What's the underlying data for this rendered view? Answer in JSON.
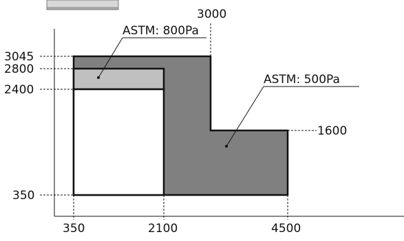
{
  "diagram": {
    "x_ticks": [
      "350",
      "2100",
      "4500"
    ],
    "y_ticks": [
      "3045",
      "2800",
      "2400",
      "350"
    ],
    "top_value": "3000",
    "right_value": "1600",
    "annotation_800": "ASTM: 800Pa",
    "annotation_500": "ASTM: 500Pa",
    "colors": {
      "dark_fill": "#808080",
      "light_fill": "#c0c0c0",
      "inner_fill": "#ffffff",
      "stroke": "#111111"
    }
  }
}
